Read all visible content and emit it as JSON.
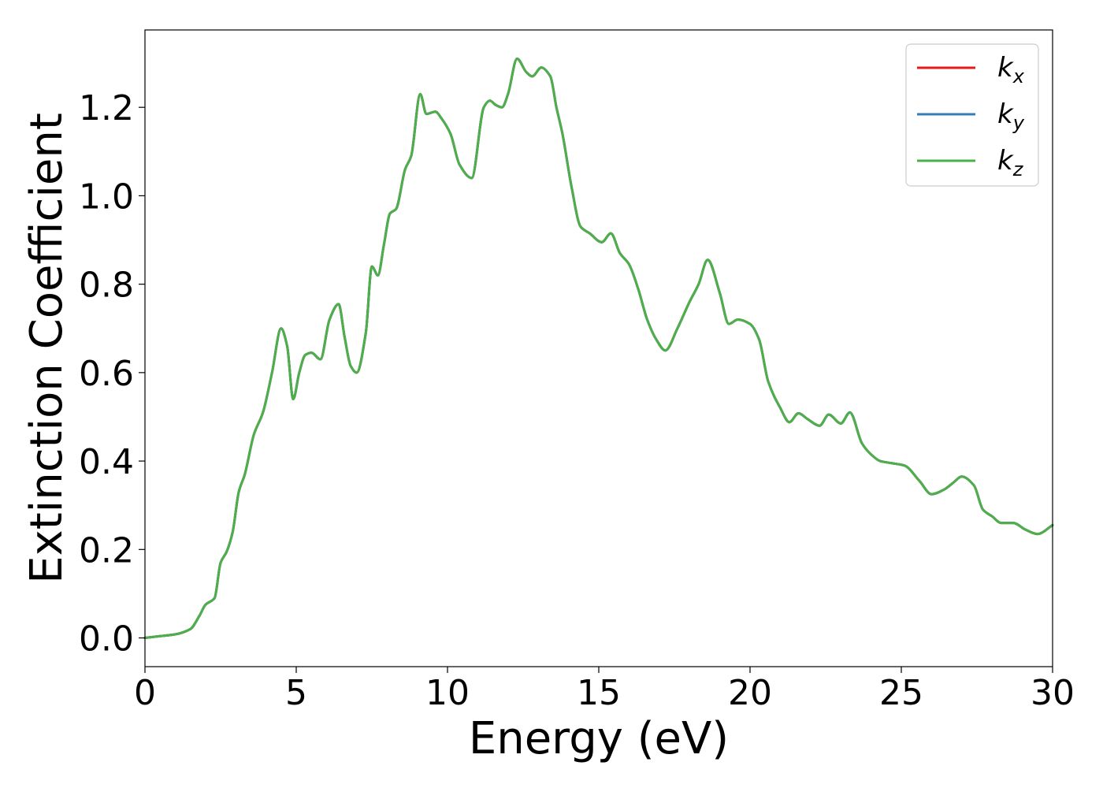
{
  "chart_data": {
    "type": "line",
    "xlabel": "Energy (eV)",
    "ylabel": "Extinction Coefficient",
    "xlim": [
      0,
      30
    ],
    "ylim": [
      -0.065,
      1.375
    ],
    "xticks": [
      0,
      5,
      10,
      15,
      20,
      25,
      30
    ],
    "xtick_labels": [
      "0",
      "5",
      "10",
      "15",
      "20",
      "25",
      "30"
    ],
    "yticks": [
      0.0,
      0.2,
      0.4,
      0.6,
      0.8,
      1.0,
      1.2
    ],
    "ytick_labels": [
      "0.0",
      "0.2",
      "0.4",
      "0.6",
      "0.8",
      "1.0",
      "1.2"
    ],
    "grid": false,
    "legend_position": "top-right",
    "x": [
      0,
      0.5,
      1.0,
      1.5,
      1.8,
      2.0,
      2.3,
      2.5,
      2.7,
      2.9,
      3.1,
      3.3,
      3.6,
      3.9,
      4.2,
      4.5,
      4.7,
      4.9,
      5.1,
      5.3,
      5.5,
      5.8,
      6.1,
      6.4,
      6.6,
      6.8,
      7.0,
      7.3,
      7.5,
      7.7,
      7.9,
      8.1,
      8.3,
      8.6,
      8.8,
      9.1,
      9.3,
      9.6,
      9.8,
      10.1,
      10.4,
      10.8,
      11.2,
      11.4,
      11.6,
      11.8,
      12.0,
      12.3,
      12.6,
      12.8,
      13.1,
      13.4,
      13.6,
      13.8,
      14.1,
      14.4,
      14.7,
      15.1,
      15.4,
      15.7,
      16.0,
      16.3,
      16.6,
      16.9,
      17.2,
      17.6,
      18.0,
      18.3,
      18.6,
      19.0,
      19.3,
      19.6,
      20.0,
      20.3,
      20.6,
      21.0,
      21.3,
      21.6,
      21.9,
      22.3,
      22.6,
      23.0,
      23.3,
      23.7,
      24.0,
      24.3,
      24.7,
      25.1,
      25.6,
      26.0,
      26.4,
      26.7,
      27.0,
      27.4,
      27.7,
      28.0,
      28.3,
      28.7,
      29.1,
      29.5,
      30.0
    ],
    "series": [
      {
        "name": "k_x",
        "color": "#e41a1c",
        "y": [
          0.0,
          0.004,
          0.008,
          0.02,
          0.05,
          0.075,
          0.09,
          0.17,
          0.195,
          0.24,
          0.33,
          0.37,
          0.46,
          0.51,
          0.6,
          0.7,
          0.66,
          0.54,
          0.6,
          0.64,
          0.645,
          0.63,
          0.72,
          0.755,
          0.68,
          0.615,
          0.6,
          0.69,
          0.84,
          0.82,
          0.89,
          0.96,
          0.97,
          1.06,
          1.09,
          1.23,
          1.185,
          1.19,
          1.175,
          1.14,
          1.07,
          1.04,
          1.2,
          1.215,
          1.205,
          1.2,
          1.23,
          1.31,
          1.28,
          1.27,
          1.29,
          1.27,
          1.2,
          1.14,
          1.02,
          0.93,
          0.915,
          0.895,
          0.915,
          0.87,
          0.845,
          0.79,
          0.72,
          0.675,
          0.65,
          0.7,
          0.76,
          0.8,
          0.855,
          0.78,
          0.71,
          0.72,
          0.71,
          0.675,
          0.58,
          0.52,
          0.488,
          0.508,
          0.495,
          0.48,
          0.505,
          0.485,
          0.51,
          0.44,
          0.415,
          0.4,
          0.395,
          0.39,
          0.355,
          0.325,
          0.335,
          0.35,
          0.365,
          0.345,
          0.29,
          0.275,
          0.26,
          0.26,
          0.245,
          0.235,
          0.255
        ]
      },
      {
        "name": "k_y",
        "color": "#377eb8",
        "y": [
          0.0,
          0.004,
          0.008,
          0.02,
          0.05,
          0.075,
          0.09,
          0.17,
          0.195,
          0.24,
          0.33,
          0.37,
          0.46,
          0.51,
          0.6,
          0.7,
          0.66,
          0.54,
          0.6,
          0.64,
          0.645,
          0.63,
          0.72,
          0.755,
          0.68,
          0.615,
          0.6,
          0.69,
          0.84,
          0.82,
          0.89,
          0.96,
          0.97,
          1.06,
          1.09,
          1.23,
          1.185,
          1.19,
          1.175,
          1.14,
          1.07,
          1.04,
          1.2,
          1.215,
          1.205,
          1.2,
          1.23,
          1.31,
          1.28,
          1.27,
          1.29,
          1.27,
          1.2,
          1.14,
          1.02,
          0.93,
          0.915,
          0.895,
          0.915,
          0.87,
          0.845,
          0.79,
          0.72,
          0.675,
          0.65,
          0.7,
          0.76,
          0.8,
          0.855,
          0.78,
          0.71,
          0.72,
          0.71,
          0.675,
          0.58,
          0.52,
          0.488,
          0.508,
          0.495,
          0.48,
          0.505,
          0.485,
          0.51,
          0.44,
          0.415,
          0.4,
          0.395,
          0.39,
          0.355,
          0.325,
          0.335,
          0.35,
          0.365,
          0.345,
          0.29,
          0.275,
          0.26,
          0.26,
          0.245,
          0.235,
          0.255
        ]
      },
      {
        "name": "k_z",
        "color": "#4daf4a",
        "y": [
          0.0,
          0.004,
          0.008,
          0.02,
          0.05,
          0.075,
          0.09,
          0.17,
          0.195,
          0.24,
          0.33,
          0.37,
          0.46,
          0.51,
          0.6,
          0.7,
          0.66,
          0.54,
          0.6,
          0.64,
          0.645,
          0.63,
          0.72,
          0.755,
          0.68,
          0.615,
          0.6,
          0.69,
          0.84,
          0.82,
          0.89,
          0.96,
          0.97,
          1.06,
          1.09,
          1.23,
          1.185,
          1.19,
          1.175,
          1.14,
          1.07,
          1.04,
          1.2,
          1.215,
          1.205,
          1.2,
          1.23,
          1.31,
          1.28,
          1.27,
          1.29,
          1.27,
          1.2,
          1.14,
          1.02,
          0.93,
          0.915,
          0.895,
          0.915,
          0.87,
          0.845,
          0.79,
          0.72,
          0.675,
          0.65,
          0.7,
          0.76,
          0.8,
          0.855,
          0.78,
          0.71,
          0.72,
          0.71,
          0.675,
          0.58,
          0.52,
          0.488,
          0.508,
          0.495,
          0.48,
          0.505,
          0.485,
          0.51,
          0.44,
          0.415,
          0.4,
          0.395,
          0.39,
          0.355,
          0.325,
          0.335,
          0.35,
          0.365,
          0.345,
          0.29,
          0.275,
          0.26,
          0.26,
          0.245,
          0.235,
          0.255
        ]
      }
    ],
    "legend": [
      {
        "base": "k",
        "sub": "x",
        "color": "#e41a1c"
      },
      {
        "base": "k",
        "sub": "y",
        "color": "#377eb8"
      },
      {
        "base": "k",
        "sub": "z",
        "color": "#4daf4a"
      }
    ]
  }
}
